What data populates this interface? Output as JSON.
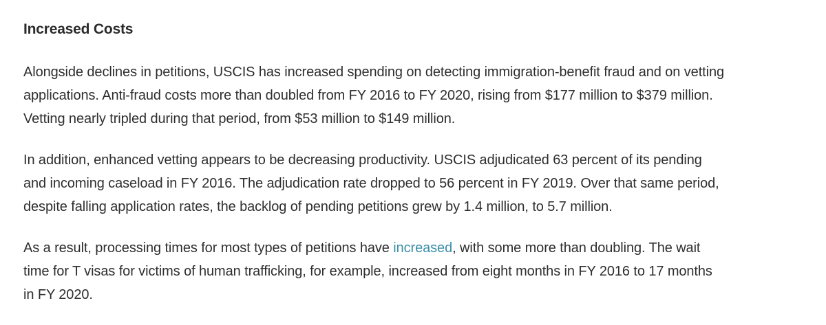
{
  "section": {
    "heading": "Increased Costs"
  },
  "paragraphs": {
    "p1": {
      "line1": "Alongside declines in petitions, USCIS has increased spending on detecting immigration-benefit fraud and on vetting",
      "line2": "applications. Anti-fraud costs more than doubled from FY 2016 to FY 2020, rising from $177 million to $379 million.",
      "line3": "Vetting nearly tripled during that period, from $53 million to $149 million."
    },
    "p2": {
      "line1": "In addition, enhanced vetting appears to be decreasing productivity. USCIS adjudicated 63 percent of its pending",
      "line2": "and incoming caseload in FY 2016. The adjudication rate dropped to 56 percent in FY 2019. Over that same period,",
      "line3": "despite falling application rates, the backlog of pending petitions grew by 1.4 million, to 5.7 million."
    },
    "p3": {
      "line1_before": "As a result, processing times for most types of petitions have ",
      "link_text": "increased",
      "line1_after": ", with some more than doubling. The wait",
      "line2": "time for T visas for victims of human trafficking, for example, increased from eight months in FY 2016 to 17 months",
      "line3": "in FY 2020."
    }
  },
  "colors": {
    "text": "#2e2e2e",
    "link": "#3b8faa",
    "background": "#ffffff"
  }
}
